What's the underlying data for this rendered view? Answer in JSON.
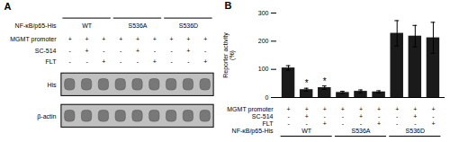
{
  "chart_data": [
    {
      "type": "blot",
      "title": "A",
      "group_label": "NF-κB/p65-His",
      "groups": [
        {
          "name": "WT",
          "size": 3
        },
        {
          "name": "S536A",
          "size": 3
        },
        {
          "name": "S536D",
          "size": 3
        }
      ],
      "table": [
        {
          "label": "MGMT promoter",
          "values": [
            "+",
            "+",
            "+",
            "+",
            "+",
            "+",
            "+",
            "+",
            "+"
          ]
        },
        {
          "label": "SC-514",
          "values": [
            "-",
            "+",
            "-",
            "-",
            "+",
            "-",
            "-",
            "+",
            "-"
          ]
        },
        {
          "label": "FLT",
          "values": [
            "-",
            "-",
            "+",
            "-",
            "-",
            "+",
            "-",
            "-",
            "+"
          ]
        }
      ],
      "blots": [
        "His",
        "β-actin"
      ],
      "color": "#787878"
    },
    {
      "type": "bar",
      "title": "B",
      "categories": [
        null,
        null,
        null,
        null,
        null,
        null,
        null,
        null,
        null
      ],
      "values": [
        105,
        28,
        35,
        18,
        22,
        20,
        228,
        218,
        212
      ],
      "errors": [
        8,
        5,
        6,
        4,
        5,
        4,
        45,
        38,
        55
      ],
      "annotations": [
        null,
        "*",
        "*",
        null,
        null,
        null,
        null,
        null,
        null
      ],
      "color": "#1a1a1a",
      "ylim": [
        0,
        300
      ],
      "yticks": [
        0,
        100,
        200,
        300
      ],
      "ylabel": "Reporter activity\n(%)",
      "tick_labels": "y",
      "table": [
        {
          "label": "MGMT promoter",
          "values": [
            "+",
            "+",
            "+",
            "+",
            "+",
            "+",
            "+",
            "+",
            "+"
          ]
        },
        {
          "label": "SC-514",
          "values": [
            "-",
            "+",
            "-",
            "-",
            "+",
            "-",
            "-",
            "+",
            "-"
          ]
        },
        {
          "label": "FLT",
          "values": [
            "-",
            "-",
            "+",
            "-",
            "-",
            "+",
            "-",
            "-",
            "+"
          ]
        }
      ],
      "group_label": "NF-κB/p65-His",
      "groups": [
        {
          "name": "WT",
          "size": 3
        },
        {
          "name": "S536A",
          "size": 3
        },
        {
          "name": "S536D",
          "size": 3
        }
      ]
    }
  ]
}
